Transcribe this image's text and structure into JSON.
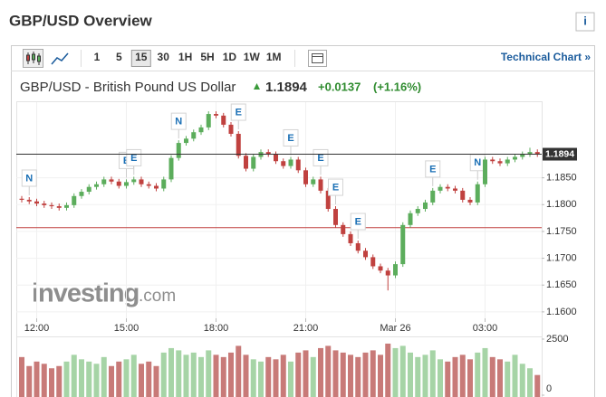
{
  "page": {
    "title": "GBP/USD Overview",
    "info": "i",
    "toolbar": {
      "intervals": [
        "1",
        "5",
        "15",
        "30",
        "1H",
        "5H",
        "1D",
        "1W",
        "1M"
      ],
      "selected": "15",
      "link": "Technical Chart »"
    },
    "quote": {
      "name": "GBP/USD - British Pound US Dollar",
      "price": {
        "value": 1.1894,
        "label": "1.1894"
      },
      "change": "+0.0137",
      "change_pct": "(+1.16%)"
    },
    "watermark": [
      "investing",
      ".com"
    ]
  },
  "chart_data": {
    "type": "candlestick",
    "categories": [
      null,
      null,
      "12:00",
      null,
      null,
      null,
      null,
      null,
      null,
      null,
      null,
      null,
      null,
      null,
      "15:00",
      null,
      null,
      null,
      null,
      null,
      null,
      null,
      null,
      null,
      null,
      null,
      "18:00",
      null,
      null,
      null,
      null,
      null,
      null,
      null,
      null,
      null,
      null,
      null,
      "21:00",
      null,
      null,
      null,
      null,
      null,
      null,
      null,
      null,
      null,
      null,
      null,
      "Mar 26",
      null,
      null,
      null,
      null,
      null,
      null,
      null,
      null,
      null,
      null,
      null,
      "03:00",
      null,
      null,
      null,
      null,
      null,
      null,
      null
    ],
    "open": [
      1.1811,
      1.1809,
      1.1806,
      1.1802,
      1.1799,
      1.1797,
      1.1794,
      1.1799,
      1.1816,
      1.1824,
      1.1833,
      1.1838,
      1.1847,
      1.1843,
      1.1835,
      1.1842,
      1.1847,
      1.1838,
      1.1835,
      1.183,
      1.1847,
      1.1887,
      1.1915,
      1.1923,
      1.1935,
      1.1944,
      1.1969,
      1.1966,
      1.1949,
      1.1932,
      1.1891,
      1.1867,
      1.1889,
      1.1898,
      1.1894,
      1.1881,
      1.1872,
      1.1884,
      1.1864,
      1.1838,
      1.1847,
      1.1826,
      1.1792,
      1.1762,
      1.1745,
      1.1728,
      1.1714,
      1.1702,
      1.1685,
      1.1677,
      1.1668,
      1.1689,
      1.1762,
      1.1784,
      1.1792,
      1.1804,
      1.1826,
      1.1833,
      1.183,
      1.1826,
      1.1809,
      1.1804,
      1.1838,
      1.1884,
      1.1881,
      1.1877,
      1.1884,
      1.1889,
      1.1894,
      1.1898
    ],
    "high": [
      1.1816,
      1.1814,
      1.1811,
      1.1807,
      1.1804,
      1.1802,
      1.1804,
      1.1821,
      1.1829,
      1.1838,
      1.1843,
      1.1852,
      1.1852,
      1.1848,
      1.1847,
      1.1852,
      1.1852,
      1.1843,
      1.184,
      1.1852,
      1.1892,
      1.192,
      1.1928,
      1.194,
      1.1949,
      1.1974,
      1.1974,
      1.1971,
      1.1954,
      1.1937,
      1.1896,
      1.1894,
      1.1903,
      1.1903,
      1.1899,
      1.1886,
      1.1889,
      1.1889,
      1.1869,
      1.1852,
      1.1852,
      1.1831,
      1.1797,
      1.1767,
      1.175,
      1.1733,
      1.1719,
      1.1707,
      1.169,
      1.1682,
      1.1694,
      1.1767,
      1.1789,
      1.1797,
      1.1809,
      1.1831,
      1.1838,
      1.1838,
      1.1835,
      1.1831,
      1.1814,
      1.1843,
      1.1889,
      1.1889,
      1.1886,
      1.1889,
      1.1894,
      1.1899,
      1.1906,
      1.1903
    ],
    "low": [
      1.1804,
      1.1801,
      1.1797,
      1.1794,
      1.1792,
      1.1789,
      1.1789,
      1.1794,
      1.1811,
      1.1819,
      1.1828,
      1.1833,
      1.1838,
      1.183,
      1.183,
      1.1837,
      1.1833,
      1.183,
      1.1825,
      1.1825,
      1.1842,
      1.1882,
      1.191,
      1.1918,
      1.193,
      1.1939,
      1.1961,
      1.1944,
      1.1927,
      1.1886,
      1.1862,
      1.1862,
      1.1884,
      1.1889,
      1.1876,
      1.1867,
      1.1867,
      1.1859,
      1.1833,
      1.1833,
      1.1821,
      1.1787,
      1.1757,
      1.174,
      1.1723,
      1.1709,
      1.1697,
      1.168,
      1.1672,
      1.164,
      1.1663,
      1.1684,
      1.1757,
      1.1779,
      1.1787,
      1.1799,
      1.1821,
      1.1825,
      1.1821,
      1.1804,
      1.1799,
      1.1799,
      1.1833,
      1.1876,
      1.1872,
      1.1872,
      1.1879,
      1.1884,
      1.1889,
      1.1889
    ],
    "close": [
      1.1809,
      1.1806,
      1.1802,
      1.1799,
      1.1797,
      1.1794,
      1.1799,
      1.1816,
      1.1824,
      1.1833,
      1.1838,
      1.1847,
      1.1843,
      1.1835,
      1.1842,
      1.1847,
      1.1838,
      1.1835,
      1.183,
      1.1847,
      1.1887,
      1.1915,
      1.1923,
      1.1935,
      1.1944,
      1.1969,
      1.1966,
      1.1949,
      1.1932,
      1.1891,
      1.1867,
      1.1889,
      1.1898,
      1.1894,
      1.1881,
      1.1872,
      1.1884,
      1.1864,
      1.1838,
      1.1847,
      1.1826,
      1.1792,
      1.1762,
      1.1745,
      1.1728,
      1.1714,
      1.1702,
      1.1685,
      1.1677,
      1.1668,
      1.1689,
      1.1762,
      1.1784,
      1.1792,
      1.1804,
      1.1826,
      1.1833,
      1.183,
      1.1826,
      1.1809,
      1.1804,
      1.1838,
      1.1884,
      1.1881,
      1.1877,
      1.1884,
      1.1889,
      1.1894,
      1.1898,
      1.1894
    ],
    "volume": [
      1700,
      1300,
      1500,
      1400,
      1200,
      1300,
      1500,
      1800,
      1600,
      1500,
      1400,
      1700,
      1300,
      1500,
      1600,
      1800,
      1400,
      1500,
      1300,
      1900,
      2100,
      2000,
      1800,
      1900,
      1700,
      2000,
      1800,
      1700,
      1900,
      2200,
      1800,
      1600,
      1500,
      1700,
      1600,
      1800,
      1500,
      1900,
      2000,
      1700,
      2100,
      2200,
      2000,
      1900,
      1800,
      1700,
      1900,
      2000,
      1800,
      2300,
      2100,
      2200,
      1900,
      1700,
      1800,
      2000,
      1600,
      1500,
      1700,
      1800,
      1600,
      1900,
      2100,
      1700,
      1600,
      1500,
      1800,
      1400,
      1200,
      900
    ],
    "markers": [
      null,
      "N",
      null,
      null,
      null,
      null,
      null,
      null,
      null,
      null,
      null,
      null,
      null,
      null,
      "E",
      "E",
      null,
      null,
      null,
      null,
      null,
      "N",
      null,
      null,
      null,
      null,
      null,
      null,
      null,
      "E",
      null,
      null,
      null,
      null,
      null,
      null,
      "E",
      null,
      null,
      null,
      "E",
      null,
      "E",
      null,
      null,
      "E",
      null,
      null,
      null,
      null,
      null,
      null,
      null,
      null,
      null,
      "E",
      null,
      null,
      null,
      null,
      null,
      "N",
      null,
      null,
      null,
      null,
      null,
      null,
      null,
      null
    ],
    "ylim": [
      1.1588,
      1.1991
    ],
    "yticks": [
      {
        "value": 1.16,
        "label": "1.1600"
      },
      {
        "value": 1.165,
        "label": "1.1650"
      },
      {
        "value": 1.17,
        "label": "1.1700"
      },
      {
        "value": 1.175,
        "label": "1.1750"
      },
      {
        "value": 1.18,
        "label": "1.1800"
      },
      {
        "value": 1.185,
        "label": "1.1850"
      }
    ],
    "reference_line": 1.1757,
    "volume_ylim": [
      0,
      2500
    ],
    "volume_yticks": [
      0,
      2500
    ],
    "up_color": "#5cad5c",
    "down_color": "#c0413f",
    "volume_up_color": "#a6d4a6",
    "volume_down_color": "#c87a78",
    "grid": true
  }
}
